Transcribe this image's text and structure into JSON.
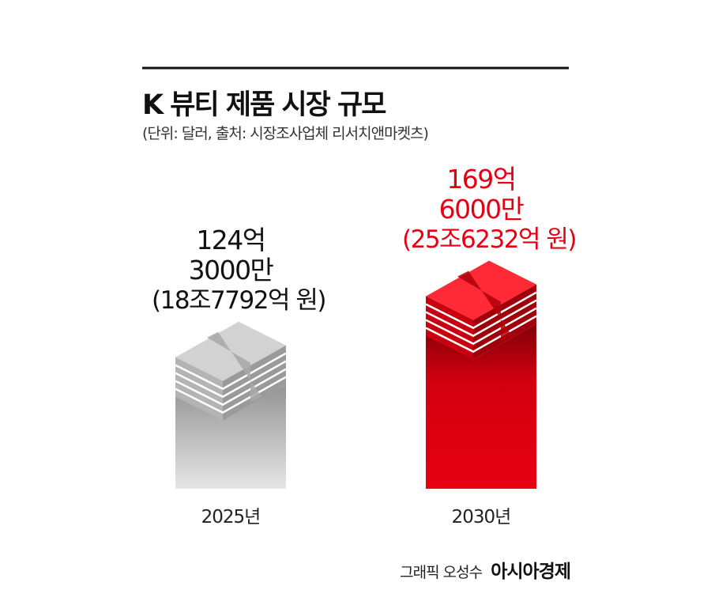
{
  "chart_data": {
    "type": "bar",
    "title": "K 뷰티 제품 시장 규모",
    "subtitle": "(단위: 달러, 출처: 시장조사업체 리서치앤마켓츠)",
    "categories": [
      "2025년",
      "2030년"
    ],
    "values": [
      12430000000,
      16960000000
    ],
    "value_labels": [
      "124억 3000만",
      "169억 6000만"
    ],
    "krw_labels": [
      "(18조7792억 원)",
      "(25조6232억 원)"
    ],
    "colors": [
      "#9a9a9a",
      "#e60012"
    ],
    "label_colors": [
      "#111111",
      "#e60012"
    ],
    "ylim": [
      0,
      20000000000
    ],
    "credit": "그래픽 오성수",
    "publisher": "아시아경제"
  }
}
